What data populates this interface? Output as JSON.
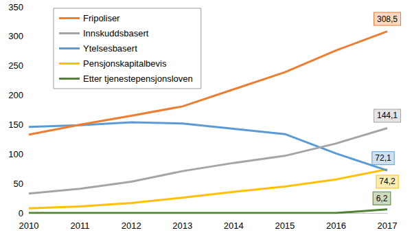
{
  "chart_data": {
    "type": "line",
    "categories": [
      "2010",
      "2011",
      "2012",
      "2013",
      "2014",
      "2015",
      "2016",
      "2017"
    ],
    "series": [
      {
        "name": "Fripoliser",
        "color": "#ED7D31",
        "values": [
          133,
          150,
          165,
          181,
          210,
          239,
          276,
          308.5
        ],
        "value_labels": [
          null,
          null,
          null,
          null,
          null,
          null,
          null,
          "308,5"
        ]
      },
      {
        "name": "Innskuddsbasert",
        "color": "#A5A5A5",
        "values": [
          33,
          41,
          53,
          71,
          85,
          97,
          118,
          144.1
        ],
        "value_labels": [
          null,
          null,
          null,
          null,
          null,
          null,
          null,
          "144,1"
        ]
      },
      {
        "name": "Ytelsesbasert",
        "color": "#5B9BD5",
        "values": [
          146,
          149,
          154,
          152,
          143,
          134,
          101,
          72.1
        ],
        "value_labels": [
          null,
          null,
          null,
          null,
          null,
          null,
          null,
          "72,1"
        ]
      },
      {
        "name": "Pensjonskapitalbevis",
        "color": "#FFC000",
        "values": [
          8,
          11,
          17,
          26,
          36,
          45,
          57,
          74.2
        ],
        "value_labels": [
          null,
          null,
          null,
          null,
          null,
          null,
          null,
          "74,2"
        ]
      },
      {
        "name": "Etter tjenestepensjonsloven",
        "color": "#548235",
        "values": [
          0,
          0,
          0,
          0,
          0,
          0,
          0,
          6.2
        ],
        "value_labels": [
          null,
          null,
          null,
          null,
          null,
          null,
          null,
          "6,2"
        ]
      }
    ],
    "ylim": [
      0,
      350
    ],
    "yticks": [
      0,
      50,
      100,
      150,
      200,
      250,
      300,
      350
    ],
    "grid": false,
    "legend": "upper left",
    "data_labels": true
  }
}
